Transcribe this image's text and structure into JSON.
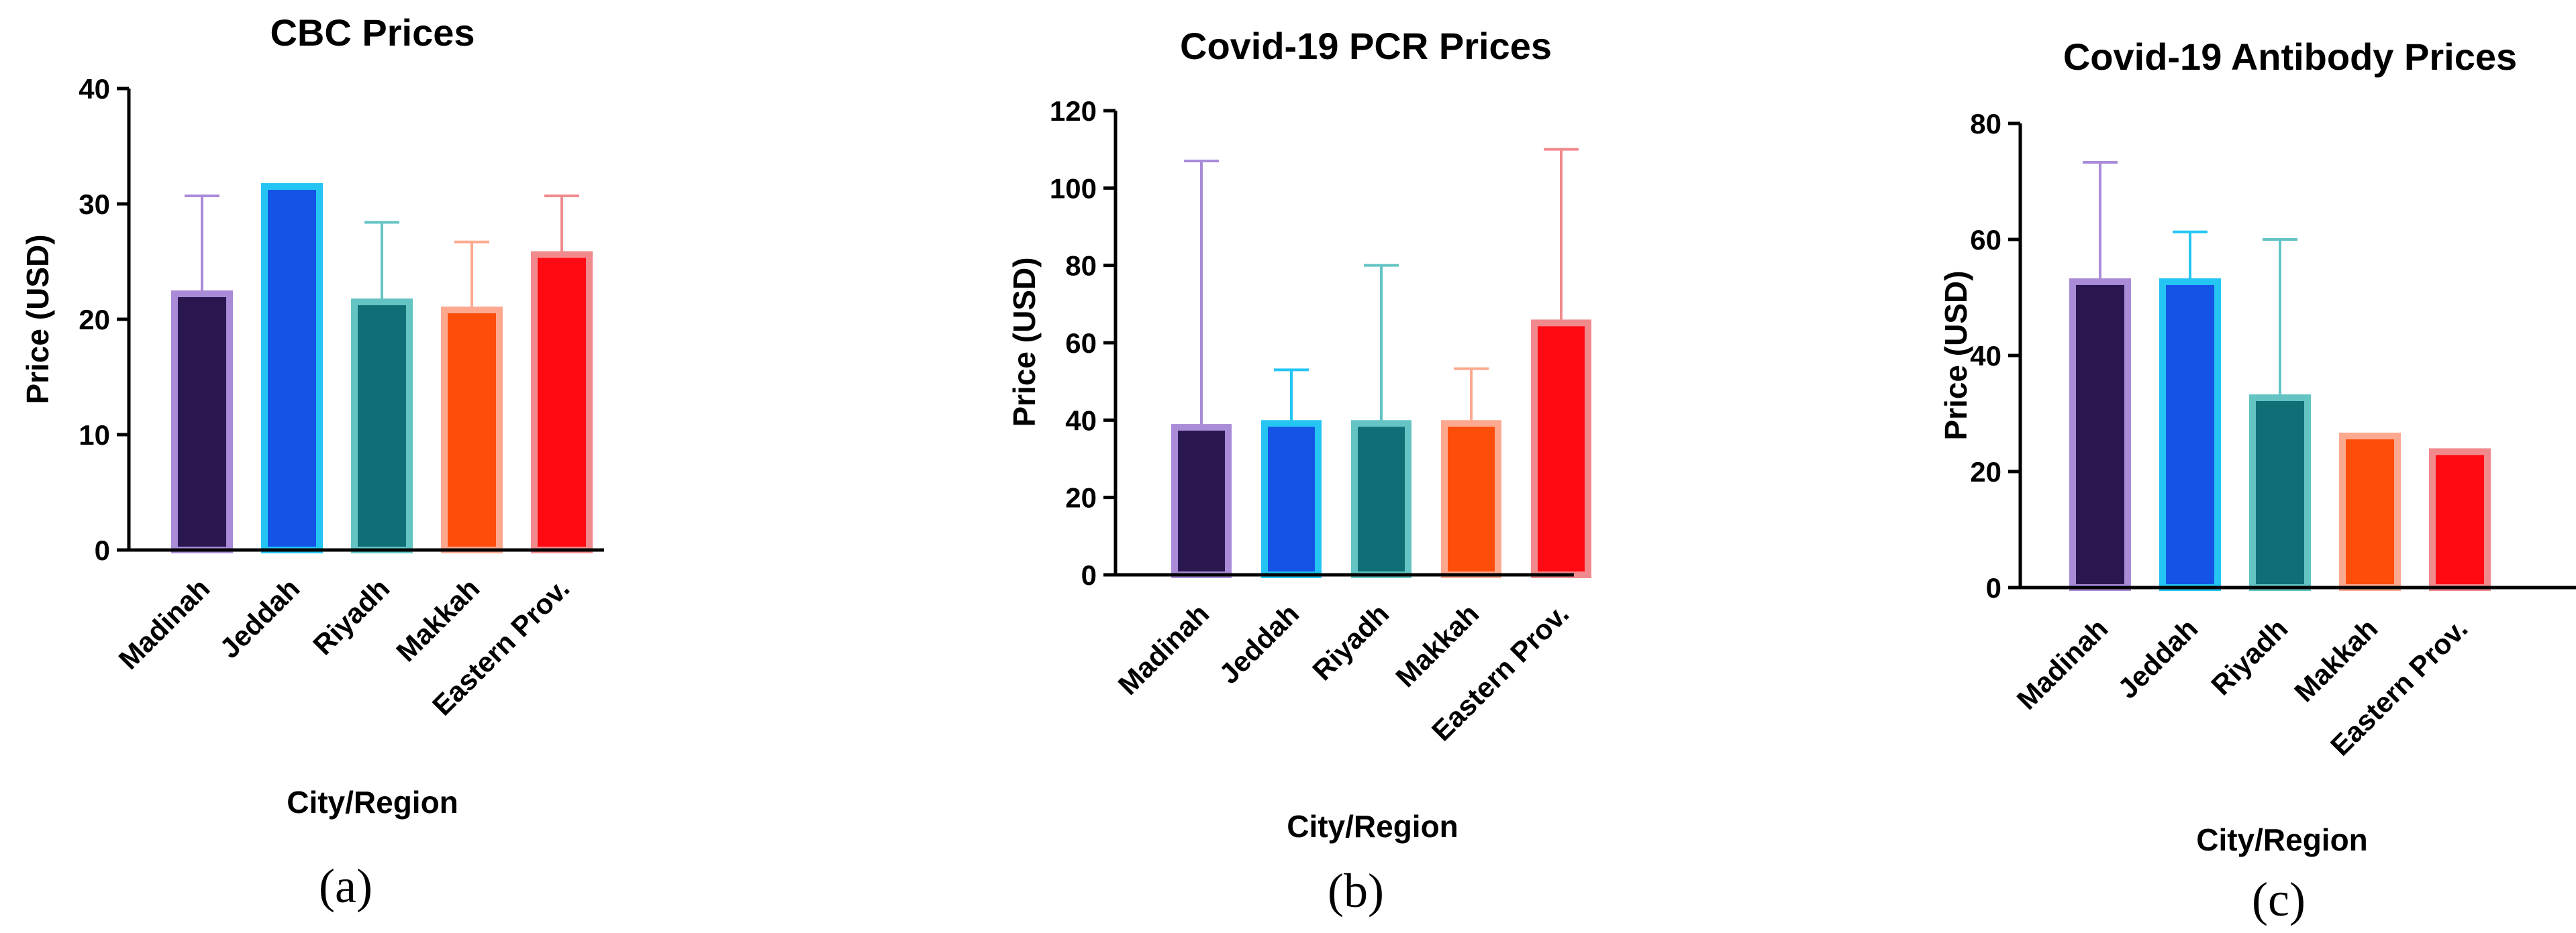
{
  "colors": {
    "bar_fills": [
      "#2a1750",
      "#1453e6",
      "#0f6e76",
      "#fc4d0b",
      "#ff0912"
    ],
    "bar_borders": [
      "#a98bd8",
      "#24c5f2",
      "#64c4c4",
      "#fda98f",
      "#f08a8d"
    ]
  },
  "chart_data": [
    {
      "type": "bar",
      "title": "CBC Prices",
      "xlabel": "City/Region",
      "ylabel": "Price (USD)",
      "panel_label": "(a)",
      "categories": [
        "Madinah",
        "Jeddah",
        "Riyadh",
        "Makkah",
        "Eastern Prov."
      ],
      "values": [
        22.5,
        31.8,
        21.8,
        21.1,
        25.9
      ],
      "error_upper": [
        30.7,
        31.8,
        28.4,
        26.7,
        30.7
      ],
      "ylim": [
        0,
        40
      ],
      "yticks": [
        0,
        10,
        20,
        30,
        40
      ]
    },
    {
      "type": "bar",
      "title": "Covid-19 PCR Prices",
      "xlabel": "City/Region",
      "ylabel": "Price (USD)",
      "panel_label": "(b)",
      "categories": [
        "Madinah",
        "Jeddah",
        "Riyadh",
        "Makkah",
        "Eastern Prov."
      ],
      "values": [
        39,
        40,
        40,
        40,
        66
      ],
      "error_upper": [
        107,
        53,
        80,
        53.3,
        110
      ],
      "ylim": [
        0,
        120
      ],
      "yticks": [
        0,
        20,
        40,
        60,
        80,
        100,
        120
      ]
    },
    {
      "type": "bar",
      "title": "Covid-19 Antibody Prices",
      "xlabel": "City/Region",
      "ylabel": "Price (USD)",
      "panel_label": "(c)",
      "categories": [
        "Madinah",
        "Jeddah",
        "Riyadh",
        "Makkah",
        "Eastern Prov."
      ],
      "values": [
        53.3,
        53.3,
        33.3,
        26.7,
        24
      ],
      "error_upper": [
        73.3,
        61.3,
        60,
        26.7,
        24
      ],
      "ylim": [
        0,
        80
      ],
      "yticks": [
        0,
        20,
        40,
        60,
        80
      ]
    }
  ]
}
